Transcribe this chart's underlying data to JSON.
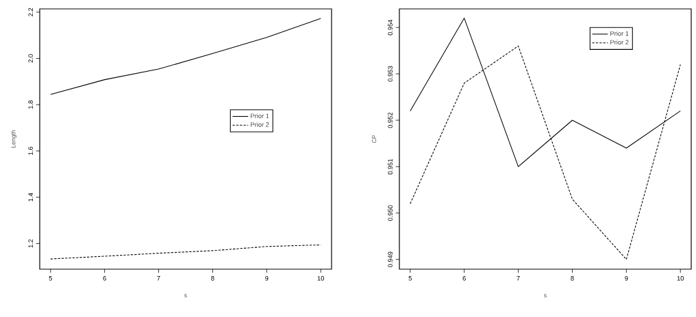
{
  "chart_data": [
    {
      "type": "line",
      "xlabel": "s",
      "ylabel": "Length",
      "x": [
        5,
        6,
        7,
        8,
        9,
        10
      ],
      "series": [
        {
          "name": "Prior 1",
          "color": "#000000",
          "line_style": "solid",
          "values": [
            1.844,
            1.908,
            1.954,
            2.021,
            2.091,
            2.173
          ]
        },
        {
          "name": "Prior 2",
          "color": "#000000",
          "line_style": "dashed",
          "values": [
            1.133,
            1.145,
            1.158,
            1.169,
            1.187,
            1.194
          ]
        }
      ],
      "xlim": [
        4.8,
        10.2
      ],
      "ylim": [
        1.089,
        2.214
      ],
      "xticks": [
        5,
        6,
        7,
        8,
        9,
        10
      ],
      "yticks": [
        1.2,
        1.4,
        1.6,
        1.8,
        {
          "value": 2,
          "label": "2.0"
        },
        2.2
      ],
      "legend": "right"
    },
    {
      "type": "line",
      "xlabel": "s",
      "ylabel": "CP",
      "x": [
        5,
        6,
        7,
        8,
        9,
        10
      ],
      "series": [
        {
          "name": "Prior 1",
          "color": "#000000",
          "line_style": "solid",
          "values": [
            0.9522,
            0.9542,
            0.951,
            0.952,
            0.9514,
            0.9522
          ]
        },
        {
          "name": "Prior 2",
          "color": "#000000",
          "line_style": "dashed",
          "values": [
            0.9502,
            0.9528,
            0.9536,
            0.9503,
            0.949,
            0.9532
          ]
        }
      ],
      "xlim": [
        4.8,
        10.2
      ],
      "ylim": [
        0.94879,
        0.9544
      ],
      "xticks": [
        5,
        6,
        7,
        8,
        9,
        10
      ],
      "yticks": [
        0.949,
        {
          "value": 0.95,
          "label": "0.950"
        },
        0.951,
        0.952,
        0.953,
        0.954
      ],
      "legend": "top right"
    }
  ]
}
